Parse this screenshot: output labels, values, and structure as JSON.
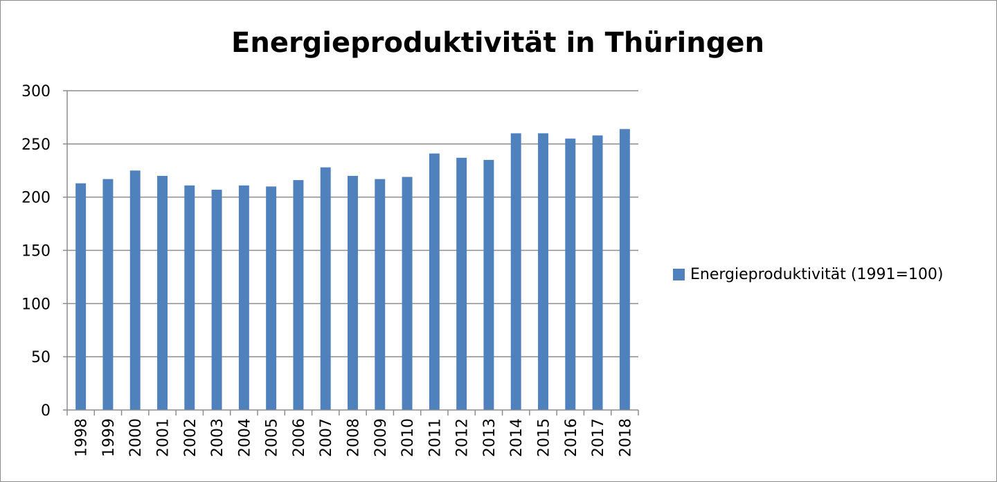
{
  "chart_data": {
    "type": "bar",
    "title": "Energieproduktivität  in Thüringen",
    "xlabel": "",
    "ylabel": "",
    "categories": [
      "1998",
      "1999",
      "2000",
      "2001",
      "2002",
      "2003",
      "2004",
      "2005",
      "2006",
      "2007",
      "2008",
      "2009",
      "2010",
      "2011",
      "2012",
      "2013",
      "2014",
      "2015",
      "2016",
      "2017",
      "2018"
    ],
    "series": [
      {
        "name": "Energieproduktivität (1991=100)",
        "values": [
          213,
          217,
          225,
          220,
          211,
          207,
          211,
          210,
          216,
          228,
          220,
          217,
          219,
          241,
          237,
          235,
          260,
          260,
          255,
          258,
          264
        ],
        "color": "#4f81bd"
      }
    ],
    "ylim": [
      0,
      300
    ],
    "yticks": [
      0,
      50,
      100,
      150,
      200,
      250,
      300
    ],
    "grid": true,
    "legend_position": "right"
  }
}
